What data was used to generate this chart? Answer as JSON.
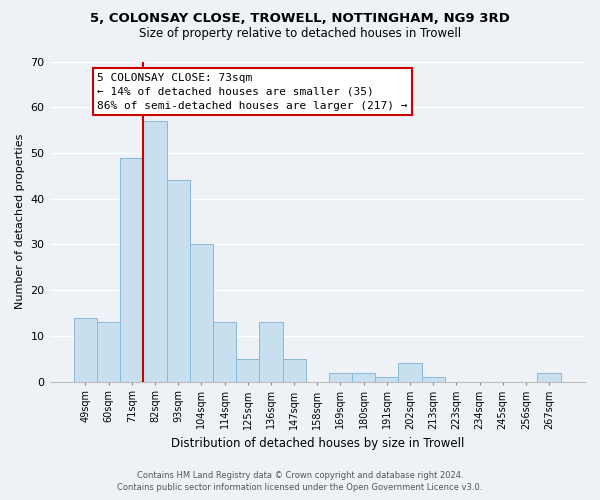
{
  "title": "5, COLONSAY CLOSE, TROWELL, NOTTINGHAM, NG9 3RD",
  "subtitle": "Size of property relative to detached houses in Trowell",
  "xlabel": "Distribution of detached houses by size in Trowell",
  "ylabel": "Number of detached properties",
  "bar_color": "#c8dff0",
  "bar_edge_color": "#8ab8d8",
  "categories": [
    "49sqm",
    "60sqm",
    "71sqm",
    "82sqm",
    "93sqm",
    "104sqm",
    "114sqm",
    "125sqm",
    "136sqm",
    "147sqm",
    "158sqm",
    "169sqm",
    "180sqm",
    "191sqm",
    "202sqm",
    "213sqm",
    "223sqm",
    "234sqm",
    "245sqm",
    "256sqm",
    "267sqm"
  ],
  "values": [
    14,
    13,
    49,
    57,
    44,
    30,
    13,
    5,
    13,
    5,
    0,
    2,
    2,
    1,
    4,
    1,
    0,
    0,
    0,
    0,
    2
  ],
  "ylim": [
    0,
    70
  ],
  "yticks": [
    0,
    10,
    20,
    30,
    40,
    50,
    60,
    70
  ],
  "vline_index": 2.5,
  "vline_color": "#cc0000",
  "annotation_title": "5 COLONSAY CLOSE: 73sqm",
  "annotation_line1": "← 14% of detached houses are smaller (35)",
  "annotation_line2": "86% of semi-detached houses are larger (217) →",
  "annotation_box_color": "#ffffff",
  "annotation_box_edge": "#cc0000",
  "footer1": "Contains HM Land Registry data © Crown copyright and database right 2024.",
  "footer2": "Contains public sector information licensed under the Open Government Licence v3.0.",
  "background_color": "#eef2f7",
  "grid_color": "#ffffff"
}
